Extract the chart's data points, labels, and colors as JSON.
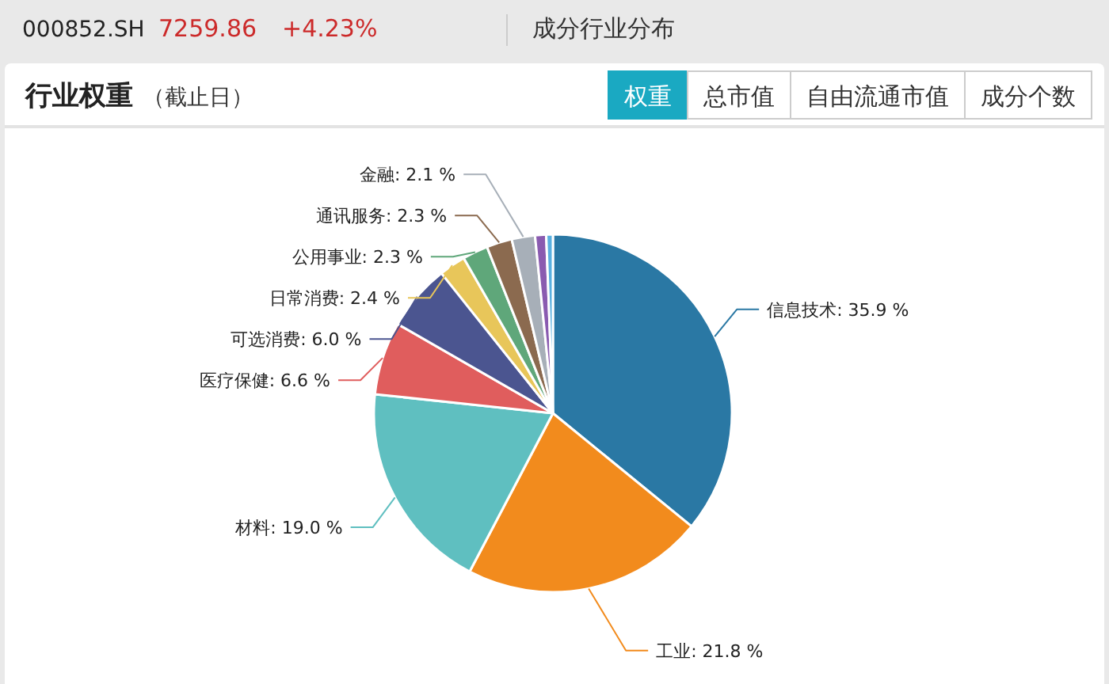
{
  "chart_data": {
    "type": "pie",
    "title": "行业权重",
    "subtitle": "（截止日）",
    "annotations": [
      "000852.SH",
      "7259.86",
      "+4.23%",
      "成分行业分布",
      "权重",
      "总市值",
      "自由流通市值",
      "成分个数"
    ],
    "categories": [
      "信息技术",
      "工业",
      "材料",
      "医疗保健",
      "可选消费",
      "日常消费",
      "公用事业",
      "通讯服务",
      "金融",
      null,
      null
    ],
    "values": [
      35.9,
      21.8,
      19.0,
      6.6,
      6.0,
      2.4,
      2.3,
      2.3,
      2.1,
      1.0,
      0.6
    ],
    "value_labels": [
      "35.9 %",
      "21.8 %",
      "19.0 %",
      "6.6 %",
      "6.0 %",
      "2.4 %",
      "2.3 %",
      "2.3 %",
      "2.1 %",
      null,
      null
    ],
    "colors": [
      "#2a78a4",
      "#f28b1d",
      "#5fbfc0",
      "#e05d5d",
      "#4b5590",
      "#e8c65a",
      "#5fa77a",
      "#8b6a4f",
      "#a7afb8",
      "#8a5bb0",
      "#5ab0e0"
    ]
  }
}
